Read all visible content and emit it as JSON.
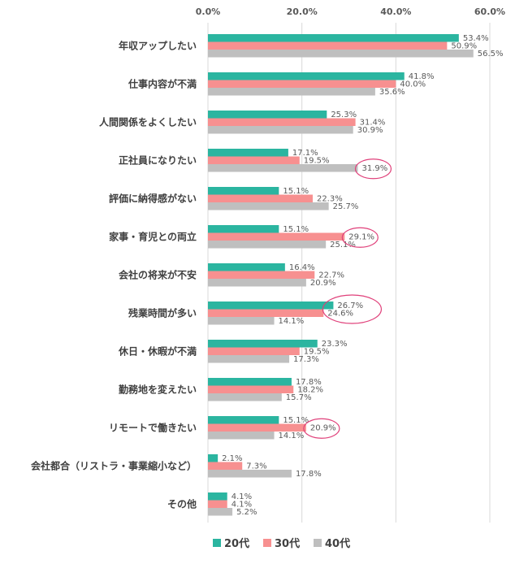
{
  "chart_data": {
    "type": "bar",
    "orientation": "horizontal",
    "title": "",
    "xlabel": "",
    "ylabel": "",
    "xlim": [
      0,
      60
    ],
    "x_ticks": [
      "0.0%",
      "20.0%",
      "40.0%",
      "60.0%"
    ],
    "x_tick_values": [
      0,
      20,
      40,
      60
    ],
    "grid": true,
    "legend_position": "bottom",
    "categories": [
      "年収アップしたい",
      "仕事内容が不満",
      "人間関係をよくしたい",
      "正社員になりたい",
      "評価に納得感がない",
      "家事・育児との両立",
      "会社の将来が不安",
      "残業時間が多い",
      "休日・休暇が不満",
      "勤務地を変えたい",
      "リモートで働きたい",
      "会社都合（リストラ・事業縮小など）",
      "その他"
    ],
    "series": [
      {
        "name": "20代",
        "color": "#2bb5a0",
        "values": [
          53.4,
          41.8,
          25.3,
          17.1,
          15.1,
          15.1,
          16.4,
          26.7,
          23.3,
          17.8,
          15.1,
          2.1,
          4.1
        ],
        "labels": [
          "53.4%",
          "41.8%",
          "25.3%",
          "17.1%",
          "15.1%",
          "15.1%",
          "16.4%",
          "26.7%",
          "23.3%",
          "17.8%",
          "15.1%",
          "2.1%",
          "4.1%"
        ]
      },
      {
        "name": "30代",
        "color": "#f79090",
        "values": [
          50.9,
          40.0,
          31.4,
          19.5,
          22.3,
          29.1,
          22.7,
          24.6,
          19.5,
          18.2,
          20.9,
          7.3,
          4.1
        ],
        "labels": [
          "50.9%",
          "40.0%",
          "31.4%",
          "19.5%",
          "22.3%",
          "29.1%",
          "22.7%",
          "24.6%",
          "19.5%",
          "18.2%",
          "20.9%",
          "7.3%",
          "4.1%"
        ]
      },
      {
        "name": "40代",
        "color": "#bfbfbf",
        "values": [
          56.5,
          35.6,
          30.9,
          31.9,
          25.7,
          25.1,
          20.9,
          14.1,
          17.3,
          15.7,
          14.1,
          17.8,
          5.2
        ],
        "labels": [
          "56.5%",
          "35.6%",
          "30.9%",
          "31.9%",
          "25.7%",
          "25.1%",
          "20.9%",
          "14.1%",
          "17.3%",
          "15.7%",
          "14.1%",
          "17.8%",
          "5.2%"
        ]
      }
    ],
    "highlights": [
      {
        "category_index": 3,
        "series_index": 2,
        "color": "#e0407a"
      },
      {
        "category_index": 5,
        "series_index": 1,
        "color": "#e0407a"
      },
      {
        "category_index": 7,
        "series_index": 0,
        "color": "#e0407a",
        "span_series": [
          0,
          1
        ]
      },
      {
        "category_index": 10,
        "series_index": 1,
        "color": "#e0407a"
      }
    ]
  }
}
